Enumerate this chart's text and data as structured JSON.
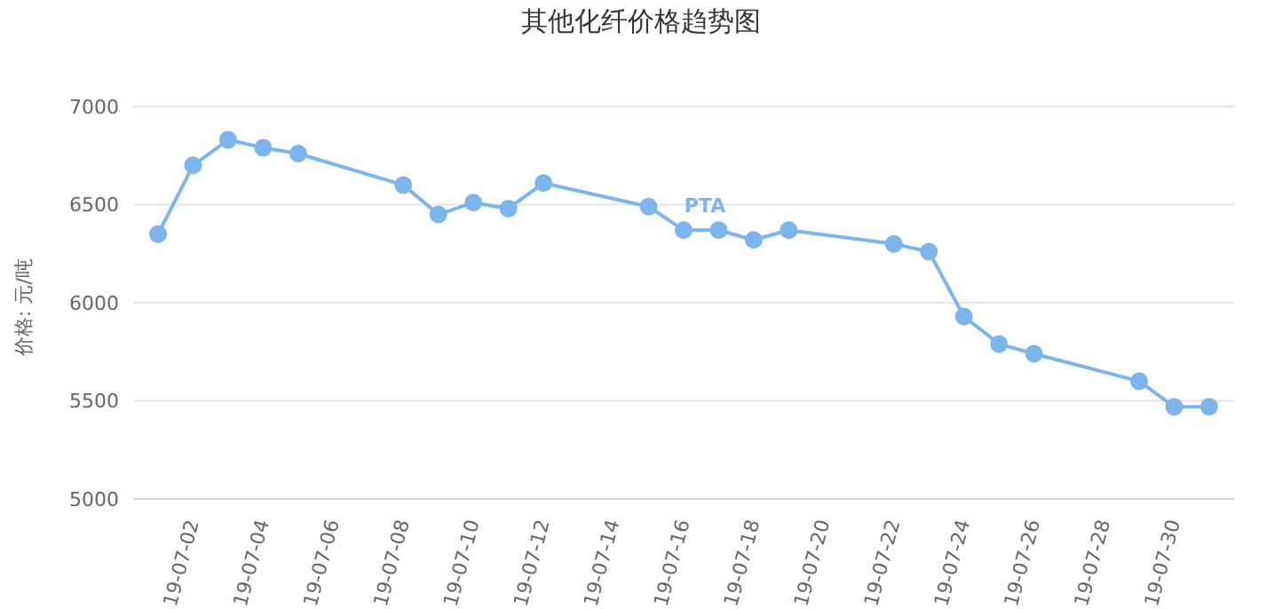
{
  "chart_data": {
    "type": "line",
    "title": "其他化纤价格趋势图",
    "ylabel": "价格: 元/吨",
    "categories": [
      null,
      "19-07-02",
      null,
      "19-07-04",
      null,
      "19-07-06",
      null,
      "19-07-08",
      null,
      "19-07-10",
      null,
      "19-07-12",
      null,
      "19-07-14",
      null,
      "19-07-16",
      null,
      "19-07-18",
      null,
      "19-07-20",
      null,
      "19-07-22",
      null,
      "19-07-24",
      null,
      "19-07-26",
      null,
      "19-07-28",
      null,
      "19-07-30",
      null
    ],
    "series": [
      {
        "name": "PTA",
        "color": "#7cb5ec",
        "values": [
          6350,
          6700,
          6830,
          6790,
          6760,
          null,
          null,
          6600,
          6450,
          6510,
          6480,
          6610,
          null,
          null,
          6490,
          6370,
          6370,
          6320,
          6370,
          null,
          null,
          6300,
          6260,
          5930,
          5790,
          5740,
          null,
          null,
          5600,
          5470,
          5470
        ]
      }
    ],
    "ylim": [
      5000,
      7000
    ],
    "yticks": [
      5000,
      5500,
      6000,
      6500,
      7000
    ],
    "grid": "y",
    "legend": false,
    "marker": "circle",
    "line_style": "solid"
  }
}
